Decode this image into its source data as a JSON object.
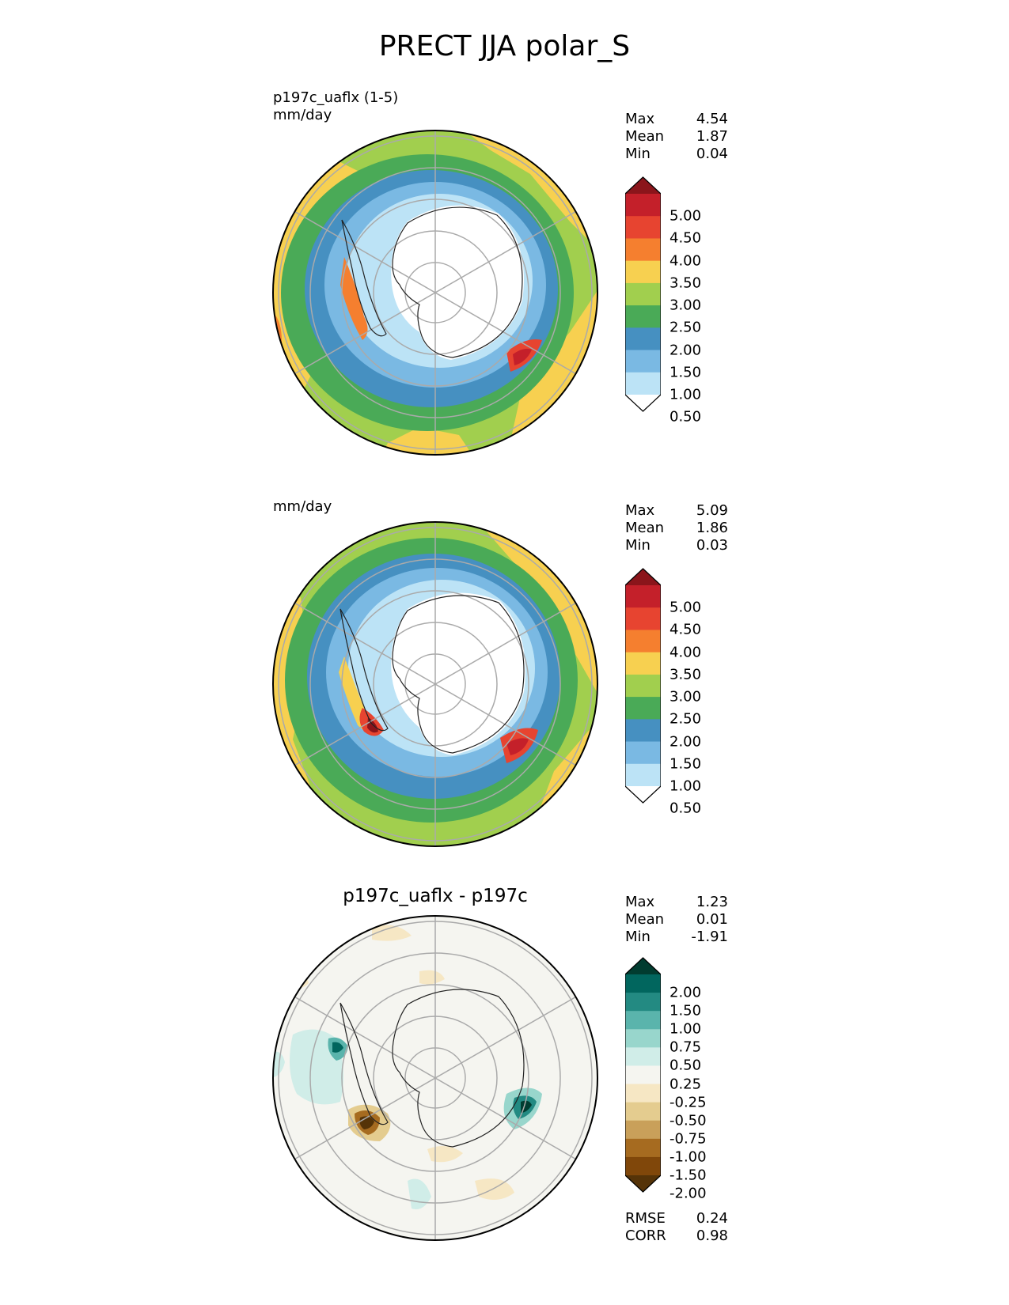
{
  "figure": {
    "title": "PRECT JJA polar_S"
  },
  "panels": [
    {
      "id": "test",
      "label_line1": "p197c_uaflx (1-5)",
      "label_line2": "mm/day",
      "stats": [
        {
          "name": "Max",
          "value": "4.54"
        },
        {
          "name": "Mean",
          "value": "1.87"
        },
        {
          "name": "Min",
          "value": "0.04"
        }
      ],
      "colorbar": {
        "ticks": [
          "5.00",
          "4.50",
          "4.00",
          "3.50",
          "3.00",
          "2.50",
          "2.00",
          "1.50",
          "1.00",
          "0.50"
        ],
        "colors": [
          "#8b151b",
          "#c4202a",
          "#e74430",
          "#f57f2f",
          "#f7d050",
          "#a1cf4e",
          "#4aaa57",
          "#4690c1",
          "#7ab9e3",
          "#bce3f6",
          "#ffffff"
        ]
      }
    },
    {
      "id": "reference",
      "label_line1": "",
      "label_line2": "mm/day",
      "stats": [
        {
          "name": "Max",
          "value": "5.09"
        },
        {
          "name": "Mean",
          "value": "1.86"
        },
        {
          "name": "Min",
          "value": "0.03"
        }
      ],
      "colorbar": {
        "ticks": [
          "5.00",
          "4.50",
          "4.00",
          "3.50",
          "3.00",
          "2.50",
          "2.00",
          "1.50",
          "1.00",
          "0.50"
        ],
        "colors": [
          "#8b151b",
          "#c4202a",
          "#e74430",
          "#f57f2f",
          "#f7d050",
          "#a1cf4e",
          "#4aaa57",
          "#4690c1",
          "#7ab9e3",
          "#bce3f6",
          "#ffffff"
        ]
      }
    },
    {
      "id": "difference",
      "title": "p197c_uaflx - p197c",
      "stats": [
        {
          "name": "Max",
          "value": "1.23"
        },
        {
          "name": "Mean",
          "value": "0.01"
        },
        {
          "name": "Min",
          "value": "-1.91"
        }
      ],
      "colorbar": {
        "ticks": [
          "2.00",
          "1.50",
          "1.00",
          "0.75",
          "0.50",
          "0.25",
          "-0.25",
          "-0.50",
          "-0.75",
          "-1.00",
          "-1.50",
          "-2.00"
        ],
        "colors": [
          "#013c30",
          "#01665e",
          "#238a82",
          "#5ab4ac",
          "#98d6cc",
          "#d0ede8",
          "#f5f5f0",
          "#f6e7c4",
          "#e4cc8f",
          "#c9a05a",
          "#a66b20",
          "#80470a",
          "#553308"
        ]
      },
      "metrics": [
        {
          "name": "RMSE",
          "value": "0.24"
        },
        {
          "name": "CORR",
          "value": "0.98"
        }
      ]
    }
  ]
}
